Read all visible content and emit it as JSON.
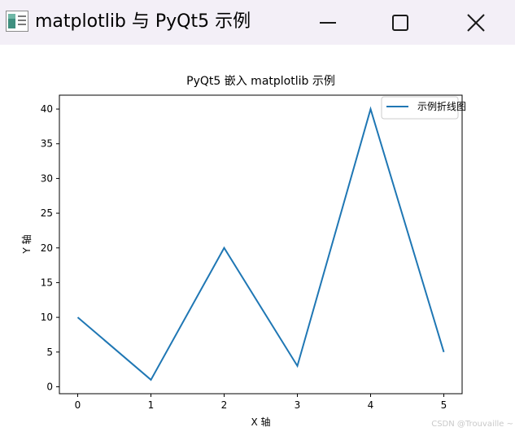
{
  "window": {
    "title": "matplotlib 与 PyQt5 示例",
    "controls": [
      "minimize",
      "maximize",
      "close"
    ]
  },
  "chart_data": {
    "type": "line",
    "title": "PyQt5 嵌入 matplotlib 示例",
    "xlabel": "X 轴",
    "ylabel": "Y 轴",
    "x": [
      0,
      1,
      2,
      3,
      4,
      5
    ],
    "series": [
      {
        "name": "示例折线图",
        "values": [
          10,
          1,
          20,
          3,
          40,
          5
        ],
        "color": "#1f77b4"
      }
    ],
    "xticks": [
      0,
      1,
      2,
      3,
      4,
      5
    ],
    "yticks": [
      0,
      5,
      10,
      15,
      20,
      25,
      30,
      35,
      40
    ],
    "xlim": [
      -0.25,
      5.25
    ],
    "ylim": [
      -1,
      42
    ],
    "legend_position": "top-right",
    "grid": false
  },
  "watermark": "CSDN @Trouvaille ~"
}
